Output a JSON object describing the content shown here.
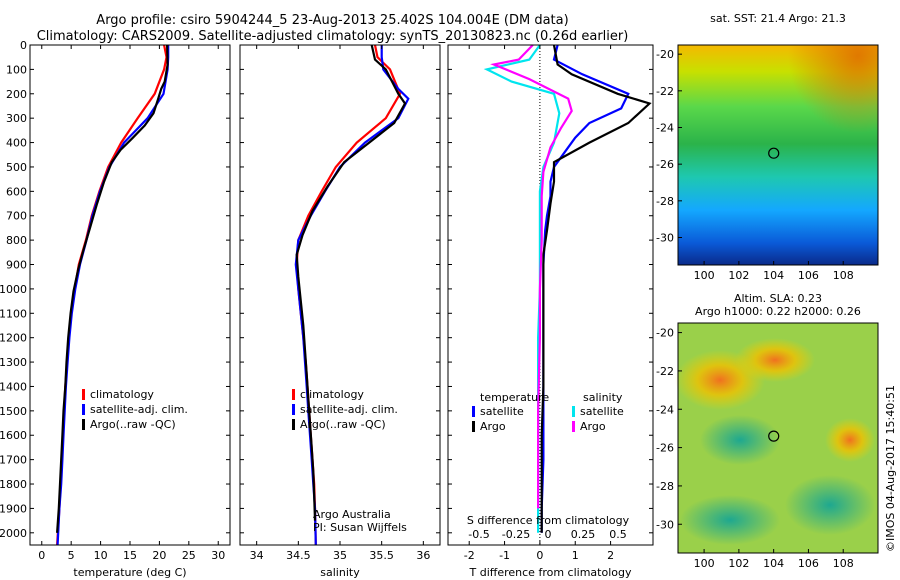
{
  "header": {
    "line1": "Argo profile: csiro 5904244_5 23-Aug-2013 25.402S 104.004E (DM data)",
    "line2": "Climatology: CARS2009. Satellite-adjusted climatology: synTS_20130823.nc (0.26d earlier)"
  },
  "colors": {
    "climatology": "#ff0000",
    "satellite": "#0000ff",
    "argo": "#000000",
    "salinity_satellite": "#00e5ee",
    "salinity_argo": "#ff00ff"
  },
  "chart_data": [
    {
      "type": "line",
      "xlabel": "temperature (deg C)",
      "xlim": [
        -2,
        32
      ],
      "ylim": [
        0,
        2050
      ],
      "y_ticks": [
        0,
        100,
        200,
        300,
        400,
        500,
        600,
        700,
        800,
        900,
        1000,
        1100,
        1200,
        1300,
        1400,
        1500,
        1600,
        1700,
        1800,
        1900,
        2000
      ],
      "x_ticks": [
        0,
        5,
        10,
        15,
        20,
        25,
        30
      ],
      "legend": [
        "climatology",
        "satellite-adj. clim.",
        "Argo(..raw -QC)"
      ],
      "series": [
        {
          "name": "climatology",
          "points": [
            [
              20.8,
              0
            ],
            [
              21.2,
              50
            ],
            [
              20.8,
              100
            ],
            [
              19.2,
              200
            ],
            [
              16.3,
              300
            ],
            [
              13.5,
              400
            ],
            [
              11.3,
              500
            ],
            [
              9.8,
              600
            ],
            [
              8.5,
              700
            ],
            [
              7.5,
              800
            ],
            [
              6.3,
              900
            ],
            [
              5.6,
              1000
            ],
            [
              5.0,
              1100
            ],
            [
              4.6,
              1200
            ],
            [
              4.3,
              1300
            ],
            [
              4.0,
              1400
            ],
            [
              3.8,
              1500
            ],
            [
              3.6,
              1600
            ],
            [
              3.4,
              1700
            ],
            [
              3.2,
              1800
            ],
            [
              3.0,
              1900
            ],
            [
              2.6,
              2050
            ]
          ]
        },
        {
          "name": "satellite-adj. clim.",
          "points": [
            [
              21.5,
              0
            ],
            [
              21.5,
              50
            ],
            [
              21.4,
              100
            ],
            [
              20.7,
              200
            ],
            [
              18.0,
              300
            ],
            [
              14.0,
              400
            ],
            [
              11.5,
              500
            ],
            [
              9.9,
              600
            ],
            [
              8.6,
              700
            ],
            [
              7.6,
              800
            ],
            [
              6.5,
              900
            ],
            [
              5.7,
              1000
            ],
            [
              5.1,
              1100
            ],
            [
              4.7,
              1200
            ],
            [
              4.4,
              1300
            ],
            [
              4.1,
              1400
            ],
            [
              3.9,
              1500
            ],
            [
              3.7,
              1600
            ],
            [
              3.5,
              1700
            ],
            [
              3.3,
              1800
            ],
            [
              3.0,
              1900
            ],
            [
              2.7,
              2050
            ]
          ]
        },
        {
          "name": "Argo(..raw -QC)",
          "points": [
            [
              21.3,
              0
            ],
            [
              21.4,
              80
            ],
            [
              20.9,
              150
            ],
            [
              20.3,
              180
            ],
            [
              19.8,
              220
            ],
            [
              19.0,
              280
            ],
            [
              17.5,
              330
            ],
            [
              15.5,
              380
            ],
            [
              13.4,
              430
            ],
            [
              11.9,
              480
            ],
            [
              10.6,
              560
            ],
            [
              9.4,
              650
            ],
            [
              8.2,
              750
            ],
            [
              7.1,
              840
            ],
            [
              6.2,
              920
            ],
            [
              5.4,
              1010
            ],
            [
              4.9,
              1100
            ],
            [
              4.5,
              1200
            ],
            [
              4.2,
              1300
            ],
            [
              4.0,
              1400
            ],
            [
              3.7,
              1500
            ],
            [
              3.5,
              1600
            ],
            [
              3.3,
              1700
            ],
            [
              3.1,
              1800
            ],
            [
              2.9,
              1900
            ],
            [
              2.6,
              2000
            ]
          ]
        }
      ]
    },
    {
      "type": "line",
      "xlabel": "salinity",
      "xlim": [
        33.8,
        36.2
      ],
      "ylim": [
        0,
        2050
      ],
      "x_ticks": [
        34,
        34.5,
        35,
        35.5,
        36
      ],
      "legend": [
        "climatology",
        "satellite-adj. clim.",
        "Argo(..raw -QC)"
      ],
      "annotation": [
        "Argo Australia",
        "PI: Susan Wijffels"
      ],
      "series": [
        {
          "name": "climatology",
          "points": [
            [
              35.42,
              0
            ],
            [
              35.45,
              50
            ],
            [
              35.6,
              100
            ],
            [
              35.72,
              200
            ],
            [
              35.55,
              300
            ],
            [
              35.2,
              400
            ],
            [
              34.95,
              500
            ],
            [
              34.78,
              600
            ],
            [
              34.62,
              700
            ],
            [
              34.5,
              800
            ],
            [
              34.48,
              900
            ],
            [
              34.5,
              1000
            ],
            [
              34.53,
              1100
            ],
            [
              34.56,
              1200
            ],
            [
              34.59,
              1300
            ],
            [
              34.61,
              1400
            ],
            [
              34.63,
              1500
            ],
            [
              34.65,
              1600
            ],
            [
              34.67,
              1700
            ],
            [
              34.69,
              1800
            ],
            [
              34.7,
              1900
            ],
            [
              34.71,
              2050
            ]
          ]
        },
        {
          "name": "satellite-adj. clim.",
          "points": [
            [
              35.5,
              0
            ],
            [
              35.5,
              50
            ],
            [
              35.52,
              100
            ],
            [
              35.7,
              180
            ],
            [
              35.82,
              220
            ],
            [
              35.7,
              300
            ],
            [
              35.3,
              400
            ],
            [
              35.0,
              500
            ],
            [
              34.82,
              600
            ],
            [
              34.65,
              700
            ],
            [
              34.5,
              800
            ],
            [
              34.47,
              900
            ],
            [
              34.5,
              1000
            ],
            [
              34.53,
              1100
            ],
            [
              34.56,
              1200
            ],
            [
              34.58,
              1300
            ],
            [
              34.6,
              1400
            ],
            [
              34.62,
              1500
            ],
            [
              34.64,
              1600
            ],
            [
              34.66,
              1700
            ],
            [
              34.68,
              1800
            ],
            [
              34.7,
              1900
            ],
            [
              34.71,
              2050
            ]
          ]
        },
        {
          "name": "Argo(..raw -QC)",
          "points": [
            [
              35.38,
              0
            ],
            [
              35.42,
              60
            ],
            [
              35.55,
              100
            ],
            [
              35.7,
              200
            ],
            [
              35.78,
              240
            ],
            [
              35.65,
              320
            ],
            [
              35.35,
              400
            ],
            [
              35.05,
              480
            ],
            [
              34.85,
              580
            ],
            [
              34.67,
              680
            ],
            [
              34.55,
              780
            ],
            [
              34.48,
              860
            ],
            [
              34.5,
              950
            ],
            [
              34.53,
              1050
            ],
            [
              34.56,
              1150
            ],
            [
              34.58,
              1250
            ],
            [
              34.6,
              1350
            ],
            [
              34.62,
              1450
            ],
            [
              34.64,
              1550
            ],
            [
              34.66,
              1650
            ],
            [
              34.68,
              1750
            ],
            [
              34.69,
              1850
            ],
            [
              34.7,
              1950
            ]
          ]
        }
      ]
    },
    {
      "type": "line",
      "xlabel": "T difference from climatology",
      "xlabel_top": "S difference from climatology",
      "xlim": [
        -2.6,
        3.2
      ],
      "ylim": [
        0,
        2050
      ],
      "x_ticks": [
        -2,
        -1,
        0,
        1,
        2
      ],
      "x_ticks_top": [
        "-0.5",
        "-0.25",
        "0",
        "0.25",
        "0.5"
      ],
      "legend_left_title": "temperature",
      "legend_right_title": "salinity",
      "legend": [
        "satellite",
        "Argo",
        "satellite",
        "Argo"
      ],
      "series": [
        {
          "name": "temperature satellite",
          "points": [
            [
              0.5,
              0
            ],
            [
              0.4,
              60
            ],
            [
              1.2,
              120
            ],
            [
              2.5,
              200
            ],
            [
              2.3,
              260
            ],
            [
              1.4,
              320
            ],
            [
              1.0,
              380
            ],
            [
              0.7,
              440
            ],
            [
              0.4,
              500
            ],
            [
              0.3,
              560
            ],
            [
              0.3,
              620
            ],
            [
              0.2,
              700
            ],
            [
              0.15,
              760
            ],
            [
              0.1,
              900
            ],
            [
              0.1,
              1100
            ],
            [
              0.1,
              1300
            ],
            [
              0.1,
              1500
            ],
            [
              0.1,
              1700
            ],
            [
              0.05,
              1900
            ],
            [
              0.05,
              2000
            ]
          ]
        },
        {
          "name": "temperature Argo",
          "points": [
            [
              0.4,
              0
            ],
            [
              0.5,
              80
            ],
            [
              0.9,
              120
            ],
            [
              2.2,
              200
            ],
            [
              3.1,
              240
            ],
            [
              2.5,
              320
            ],
            [
              1.4,
              400
            ],
            [
              0.4,
              480
            ],
            [
              0.4,
              560
            ],
            [
              0.3,
              650
            ],
            [
              0.2,
              760
            ],
            [
              0.1,
              860
            ],
            [
              0.1,
              1000
            ],
            [
              0.1,
              1200
            ],
            [
              0.1,
              1400
            ],
            [
              0.05,
              1600
            ],
            [
              0.05,
              1800
            ],
            [
              0.05,
              2000
            ]
          ]
        },
        {
          "name": "salinity satellite",
          "points": [
            [
              0.0,
              0
            ],
            [
              -0.3,
              60
            ],
            [
              -1.5,
              100
            ],
            [
              -0.8,
              150
            ],
            [
              0.4,
              200
            ],
            [
              0.55,
              280
            ],
            [
              0.4,
              400
            ],
            [
              0.1,
              500
            ],
            [
              0.0,
              600
            ],
            [
              0.0,
              800
            ],
            [
              0.0,
              1000
            ],
            [
              -0.05,
              1200
            ],
            [
              -0.05,
              1400
            ],
            [
              -0.05,
              1600
            ],
            [
              -0.05,
              1800
            ],
            [
              -0.05,
              2000
            ]
          ]
        },
        {
          "name": "salinity Argo",
          "points": [
            [
              -0.2,
              0
            ],
            [
              -0.6,
              60
            ],
            [
              -1.3,
              80
            ],
            [
              -0.3,
              140
            ],
            [
              0.8,
              220
            ],
            [
              0.9,
              270
            ],
            [
              0.6,
              340
            ],
            [
              0.3,
              420
            ],
            [
              0.1,
              520
            ],
            [
              0.05,
              620
            ],
            [
              0.05,
              800
            ],
            [
              0.0,
              1000
            ],
            [
              0.0,
              1200
            ],
            [
              -0.05,
              1500
            ],
            [
              -0.05,
              1700
            ],
            [
              -0.05,
              1900
            ]
          ]
        }
      ]
    },
    {
      "type": "heatmap",
      "title": "sat. SST: 21.4  Argo: 21.3",
      "xlim": [
        98.5,
        110
      ],
      "ylim": [
        -31.5,
        -19.5
      ],
      "x_ticks": [
        100,
        102,
        104,
        106,
        108
      ],
      "y_ticks": [
        -20,
        -22,
        -24,
        -26,
        -28,
        -30
      ],
      "marker": {
        "lon": 104.004,
        "lat": -25.402
      }
    },
    {
      "type": "heatmap",
      "title": "Altim. SLA: 0.23",
      "subtitle": "Argo h1000: 0.22 h2000: 0.26",
      "xlim": [
        98.5,
        110
      ],
      "ylim": [
        -31.5,
        -19.5
      ],
      "x_ticks": [
        100,
        102,
        104,
        106,
        108
      ],
      "y_ticks": [
        -20,
        -22,
        -24,
        -26,
        -28,
        -30
      ],
      "marker": {
        "lon": 104.004,
        "lat": -25.402
      }
    }
  ],
  "footer": {
    "stamp": "©IMOS 04-Aug-2017 15:40:51"
  }
}
